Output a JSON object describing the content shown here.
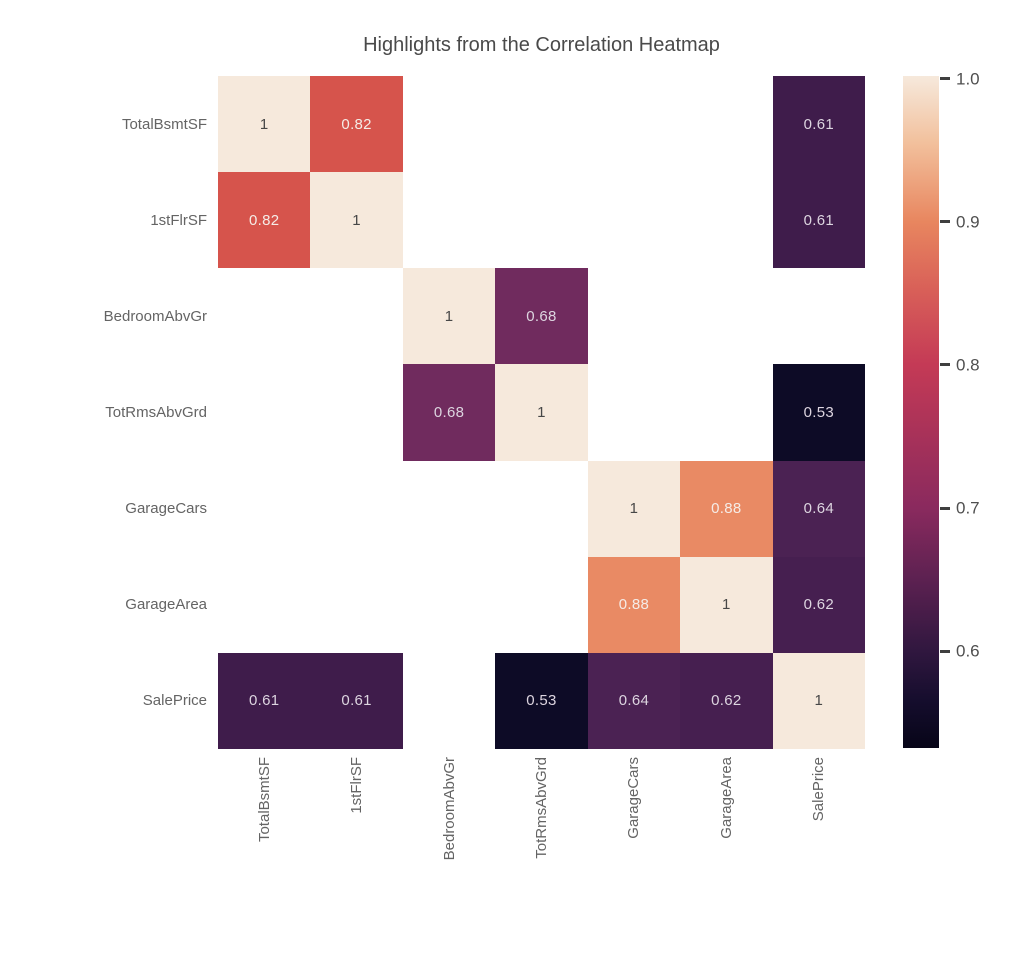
{
  "chart_data": {
    "type": "heatmap",
    "title": "Highlights from the Correlation Heatmap",
    "categories": [
      "TotalBsmtSF",
      "1stFlrSF",
      "BedroomAbvGr",
      "TotRmsAbvGrd",
      "GarageCars",
      "GarageArea",
      "SalePrice"
    ],
    "matrix": [
      [
        1,
        0.82,
        null,
        null,
        null,
        null,
        0.61
      ],
      [
        0.82,
        1,
        null,
        null,
        null,
        null,
        0.61
      ],
      [
        null,
        null,
        1,
        0.68,
        null,
        null,
        null
      ],
      [
        null,
        null,
        0.68,
        1,
        null,
        null,
        0.53
      ],
      [
        null,
        null,
        null,
        null,
        1,
        0.88,
        0.64
      ],
      [
        null,
        null,
        null,
        null,
        0.88,
        1,
        0.62
      ],
      [
        0.61,
        0.61,
        null,
        0.53,
        0.64,
        0.62,
        1
      ]
    ],
    "colorbar": {
      "tick_labels": [
        "1.0",
        "0.9",
        "0.8",
        "0.7",
        "0.6"
      ],
      "tick_positions": [
        0.004,
        0.217,
        0.43,
        0.643,
        0.856
      ],
      "vmin": 0.53,
      "vmax": 1.0,
      "gradient_stops": [
        {
          "pos": 0.0,
          "color": "#f6e9dc"
        },
        {
          "pos": 0.1,
          "color": "#f2c09c"
        },
        {
          "pos": 0.217,
          "color": "#e8865f"
        },
        {
          "pos": 0.32,
          "color": "#d85f58"
        },
        {
          "pos": 0.43,
          "color": "#c43a56"
        },
        {
          "pos": 0.53,
          "color": "#a93259"
        },
        {
          "pos": 0.643,
          "color": "#8a2a5e"
        },
        {
          "pos": 0.75,
          "color": "#5c2151"
        },
        {
          "pos": 0.856,
          "color": "#30173f"
        },
        {
          "pos": 0.93,
          "color": "#150d2d"
        },
        {
          "pos": 1.0,
          "color": "#070518"
        }
      ]
    },
    "value_colors": {
      "1": "#f6e9dc",
      "0.88": "#e98a64",
      "0.82": "#d6544c",
      "0.68": "#702b5e",
      "0.64": "#4b2253",
      "0.62": "#461f50",
      "0.61": "#3f1c4b",
      "0.53": "#0d0b26"
    },
    "text_colors": {
      "on_light": "#474747",
      "on_red": "#f5ece7",
      "on_dark": "#ddd5e0"
    },
    "axis_label_color": "#646464",
    "tick_label_color": "#4f4f4f",
    "title_color": "#4a4a4a"
  }
}
